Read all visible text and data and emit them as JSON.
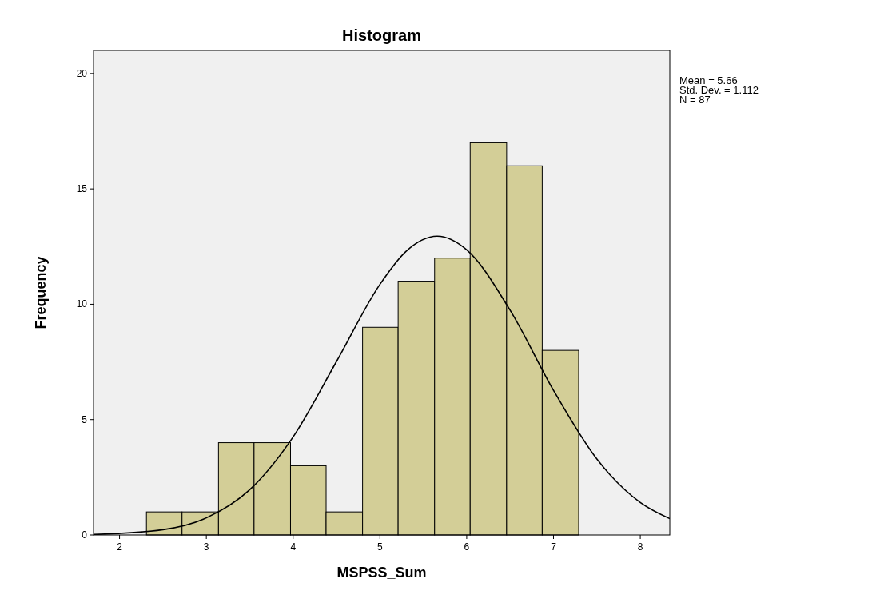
{
  "chart_data": {
    "type": "histogram",
    "title": "Histogram",
    "xlabel": "MSPSS_Sum",
    "ylabel": "Frequency",
    "bins": [
      2.31,
      2.72,
      3.14,
      3.55,
      3.97,
      4.38,
      4.8,
      5.21,
      5.63,
      6.04,
      6.46,
      6.87,
      7.29
    ],
    "values": [
      1,
      1,
      4,
      4,
      3,
      1,
      9,
      11,
      12,
      17,
      16,
      8
    ],
    "color": "#d3ce97",
    "series": [
      {
        "type": "line",
        "color": "#000000",
        "x": [
          1.7,
          2.5,
          3,
          3.5,
          4,
          4.5,
          5,
          5.3,
          5.66,
          6,
          6.5,
          7,
          7.5,
          8,
          8.34
        ],
        "values": [
          0.02,
          0.23,
          0.74,
          1.96,
          4.25,
          7.52,
          10.86,
          12.29,
          12.95,
          12.36,
          9.74,
          6.27,
          3.29,
          1.41,
          0.71
        ]
      }
    ],
    "xlim": [
      1.7,
      8.34
    ],
    "xticks": [
      2,
      3,
      4,
      5,
      6,
      7,
      8
    ],
    "ylim": [
      0,
      21
    ],
    "yticks": [
      0,
      5,
      10,
      15,
      20
    ],
    "annotations": [
      "Mean = 5.66",
      "Std. Dev. = 1.112",
      "N = 87"
    ],
    "marker": "none",
    "grid": false
  }
}
